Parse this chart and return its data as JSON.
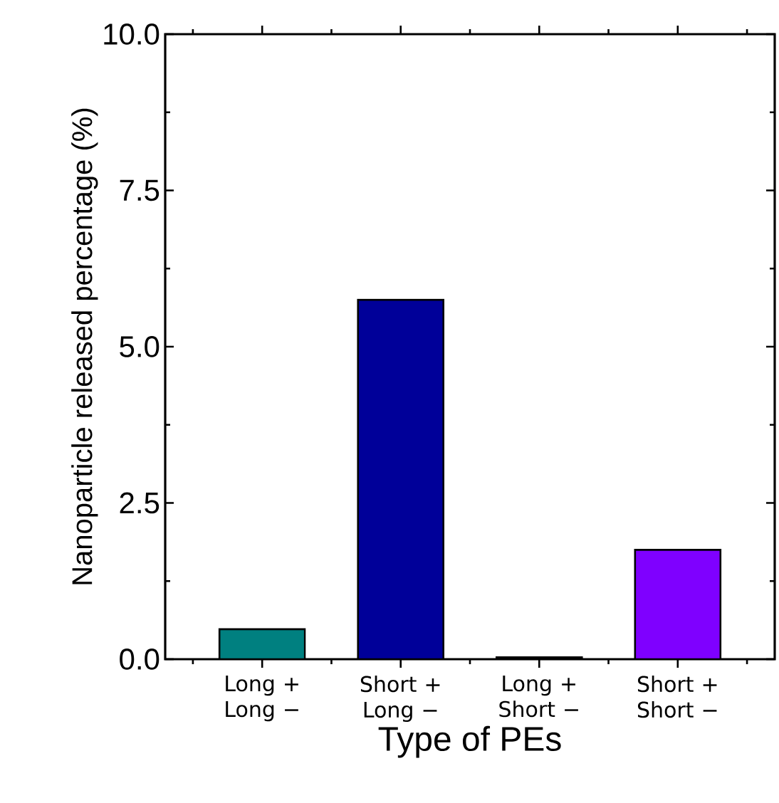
{
  "chart_data": {
    "type": "bar",
    "xlabel": "Type of PEs",
    "ylabel": "Nanoparticle released percentage (%)",
    "categories": [
      "Long + Long −",
      "Short + Long −",
      "Long + Short −",
      "Short + Short −"
    ],
    "values": [
      0.48,
      5.75,
      0.03,
      1.75
    ],
    "colors": [
      "#008080",
      "#000099",
      "#000000",
      "#7f00ff"
    ],
    "ylim": [
      0,
      10
    ],
    "yticks": [
      {
        "value": 0,
        "label": "0.0"
      },
      {
        "value": 2.5,
        "label": "2.5"
      },
      {
        "value": 5,
        "label": "5.0"
      },
      {
        "value": 7.5,
        "label": "7.5"
      },
      {
        "value": 10,
        "label": "10.0"
      }
    ],
    "grid": false
  }
}
